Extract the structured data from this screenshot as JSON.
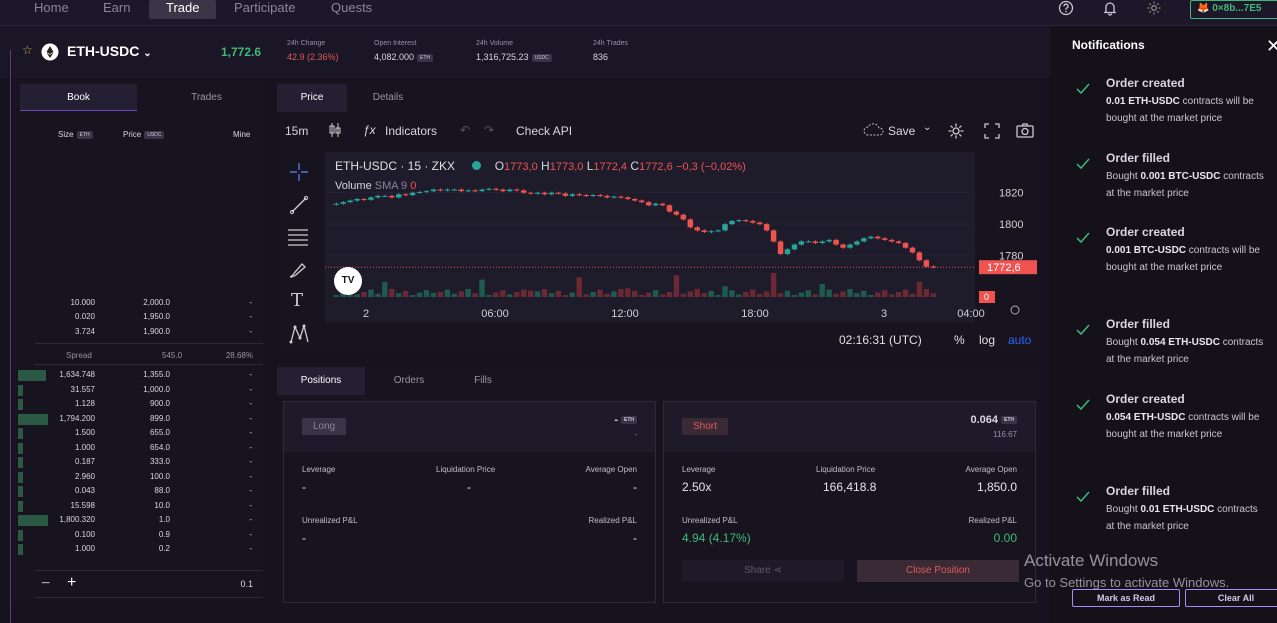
{
  "nav": {
    "items": [
      "Home",
      "Earn",
      "Trade",
      "Participate",
      "Quests"
    ],
    "active": "Trade",
    "wallet": "0×8b...7E5"
  },
  "market": {
    "pair": "ETH-USDC",
    "price": "1,772.6",
    "change_label": "24h Change",
    "change_value": "42.9 (2.36%)",
    "oi_label": "Open Interest",
    "oi_value": "4,082.000",
    "oi_unit": "ETH",
    "vol_label": "24h Volume",
    "vol_value": "1,316,725.23",
    "vol_unit": "USDC",
    "trades_label": "24h Trades",
    "trades_value": "836"
  },
  "book": {
    "tabs": [
      "Book",
      "Trades"
    ],
    "headers": {
      "size": "Size",
      "size_unit": "ETH",
      "price": "Price",
      "price_unit": "USDC",
      "mine": "Mine"
    },
    "asks": [
      {
        "size": "10.000",
        "price": "2,000.0",
        "mine": "-"
      },
      {
        "size": "0.020",
        "price": "1,950.0",
        "mine": "-"
      },
      {
        "size": "3.724",
        "price": "1,900.0",
        "mine": "-"
      }
    ],
    "spread": {
      "label": "Spread",
      "value": "545.0",
      "pct": "28.68%"
    },
    "bids": [
      {
        "size": "1,634.748",
        "price": "1,355.0",
        "mine": "-",
        "depth": 0.28
      },
      {
        "size": "31.557",
        "price": "1,000.0",
        "mine": "-",
        "depth": 0.05
      },
      {
        "size": "1.128",
        "price": "900.0",
        "mine": "-",
        "depth": 0.05
      },
      {
        "size": "1,794.200",
        "price": "899.0",
        "mine": "-",
        "depth": 0.3
      },
      {
        "size": "1.500",
        "price": "655.0",
        "mine": "-",
        "depth": 0.05
      },
      {
        "size": "1.000",
        "price": "654.0",
        "mine": "-",
        "depth": 0.05
      },
      {
        "size": "0.187",
        "price": "333.0",
        "mine": "-",
        "depth": 0.05
      },
      {
        "size": "2.960",
        "price": "100.0",
        "mine": "-",
        "depth": 0.05
      },
      {
        "size": "0.043",
        "price": "88.0",
        "mine": "-",
        "depth": 0.05
      },
      {
        "size": "15.598",
        "price": "10.0",
        "mine": "-",
        "depth": 0.05
      },
      {
        "size": "1,800.320",
        "price": "1.0",
        "mine": "-",
        "depth": 0.3
      },
      {
        "size": "0.100",
        "price": "0.9",
        "mine": "-",
        "depth": 0.05
      },
      {
        "size": "1.000",
        "price": "0.2",
        "mine": "-",
        "depth": 0.05
      }
    ],
    "tick": "0.1"
  },
  "chart": {
    "tabs": [
      "Price",
      "Details"
    ],
    "interval": "15m",
    "indicators_label": "Indicators",
    "check_api": "Check API",
    "save_label": "Save",
    "legend_symbol": "ETH-USDC · 15 · ZKX",
    "legend_o": "O",
    "legend_o_val": "1773,0",
    "legend_h": "H",
    "legend_h_val": "1773,0",
    "legend_l": "L",
    "legend_l_val": "1772,4",
    "legend_c": "C",
    "legend_c_val": "1772,6",
    "legend_chg": "−0,3 (−0,02%)",
    "volume_label": "Volume",
    "sma_label": "SMA 9",
    "sma_val": "0",
    "last_price": "1772,6",
    "vol_badge": "0",
    "time": "02:16:31 (UTC)",
    "pct": "%",
    "log": "log",
    "auto": "auto",
    "logo": "TV"
  },
  "chart_data": {
    "type": "candlestick",
    "y_ticks": [
      1820,
      1800,
      1780
    ],
    "x_ticks": [
      "2",
      "06:00",
      "12:00",
      "18:00",
      "3",
      "04:00"
    ],
    "ylim": [
      1760,
      1830
    ],
    "last": 1772.6,
    "close": [
      1813,
      1814,
      1815,
      1816,
      1815.5,
      1817,
      1818,
      1818,
      1817,
      1819,
      1818.5,
      1820,
      1820.5,
      1821,
      1822,
      1821.5,
      1822,
      1822,
      1821,
      1821.5,
      1821,
      1822,
      1822.5,
      1822,
      1821,
      1822,
      1821.5,
      1820,
      1819.5,
      1820,
      1819,
      1820,
      1819.5,
      1818,
      1819,
      1818.5,
      1818,
      1818.5,
      1818,
      1817,
      1817.5,
      1817,
      1816,
      1815,
      1814,
      1812,
      1813,
      1812,
      1808,
      1806,
      1803,
      1798,
      1796,
      1795,
      1795.5,
      1796,
      1800,
      1802,
      1802.5,
      1802,
      1801,
      1800,
      1796,
      1789,
      1781,
      1784,
      1787,
      1789,
      1789,
      1788,
      1789,
      1790,
      1787,
      1785,
      1787,
      1789,
      1791,
      1792,
      1791,
      1790,
      1789,
      1788,
      1785,
      1782,
      1777,
      1773,
      1772.6
    ]
  },
  "positions": {
    "tabs": [
      "Positions",
      "Orders",
      "Fills"
    ],
    "long": {
      "tag": "Long",
      "size": "-",
      "unit": "ETH",
      "sub": "-",
      "leverage_label": "Leverage",
      "leverage": "-",
      "liq_label": "Liquidation Price",
      "liq": "-",
      "avg_label": "Average Open",
      "avg": "-",
      "upnl_label": "Unrealized P&L",
      "upnl": "-",
      "rpnl_label": "Realized P&L",
      "rpnl": "-"
    },
    "short": {
      "tag": "Short",
      "size": "0.064",
      "unit": "ETH",
      "sub": "116.67",
      "leverage_label": "Leverage",
      "leverage": "2.50x",
      "liq_label": "Liquidation Price",
      "liq": "166,418.8",
      "avg_label": "Average Open",
      "avg": "1,850.0",
      "upnl_label": "Unrealized P&L",
      "upnl": "4.94 (4.17%)",
      "rpnl_label": "Realized P&L",
      "rpnl": "0.00"
    },
    "share_label": "Share",
    "close_label": "Close Position"
  },
  "notifications": {
    "title": "Notifications",
    "items": [
      {
        "title": "Order created",
        "bold": "0.01 ETH-USDC",
        "text": " contracts will be bought at the market price"
      },
      {
        "title": "Order filled",
        "pre": "Bought ",
        "bold": "0.001 BTC-USDC",
        "text": " contracts at the market price"
      },
      {
        "title": "Order created",
        "bold": "0.001 BTC-USDC",
        "text": " contracts will be bought at the market price"
      },
      {
        "title": "Order filled",
        "pre": "Bought ",
        "bold": "0.054 ETH-USDC",
        "text": " contracts at the market price"
      },
      {
        "title": "Order created",
        "bold": "0.054 ETH-USDC",
        "text": " contracts will be bought at the market price"
      },
      {
        "title": "Order filled",
        "pre": "Bought ",
        "bold": "0.01 ETH-USDC",
        "text": " contracts at the market price"
      }
    ],
    "mark_read": "Mark as Read",
    "clear_all": "Clear All"
  },
  "watermark": {
    "line1": "Activate Windows",
    "line2": "Go to Settings to activate Windows."
  }
}
